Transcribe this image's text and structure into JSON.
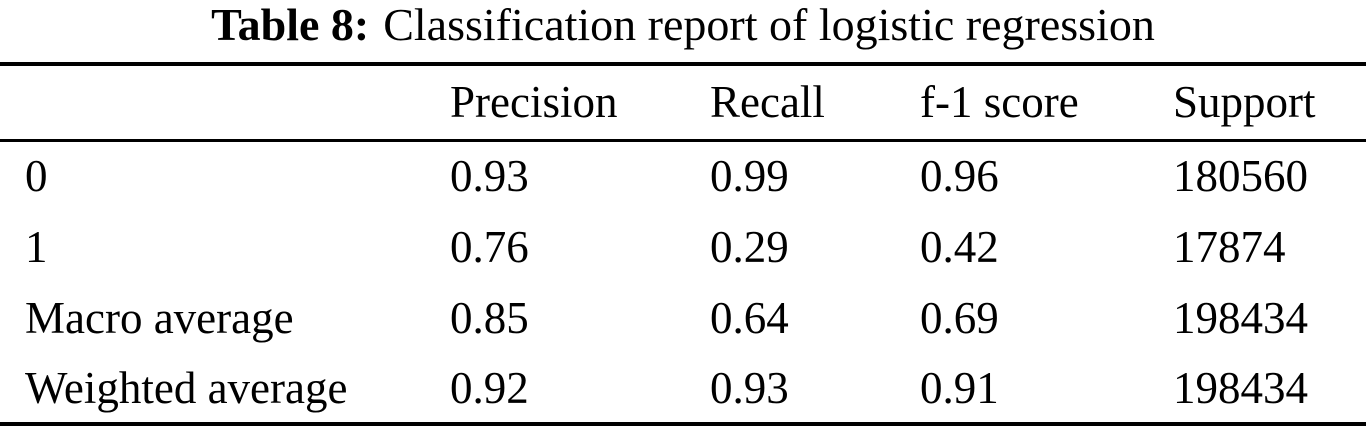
{
  "caption": {
    "label": "Table 8:",
    "text": "Classification report of logistic regression"
  },
  "table": {
    "headers": [
      "",
      "Precision",
      "Recall",
      "f-1 score",
      "Support"
    ],
    "rows": [
      [
        "0",
        "0.93",
        "0.99",
        "0.96",
        "180560"
      ],
      [
        "1",
        "0.76",
        "0.29",
        "0.42",
        "17874"
      ],
      [
        "Macro average",
        "0.85",
        "0.64",
        "0.69",
        "198434"
      ],
      [
        "Weighted average",
        "0.92",
        "0.93",
        "0.91",
        "198434"
      ]
    ]
  }
}
